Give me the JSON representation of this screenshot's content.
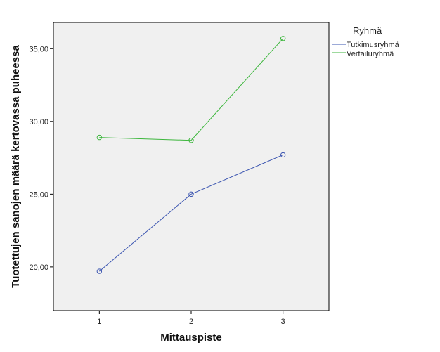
{
  "chart_data": {
    "type": "line",
    "xlabel": "Mittauspiste",
    "ylabel": "Tuotettujen sanojen määrä kertovassa puheessa",
    "x": [
      1,
      2,
      3
    ],
    "x_tick_labels": [
      "1",
      "2",
      "3"
    ],
    "xlim": [
      0.5,
      3.5
    ],
    "ylim": [
      17.0,
      36.8
    ],
    "y_ticks": [
      20,
      25,
      30,
      35
    ],
    "y_tick_labels": [
      "20,00",
      "25,00",
      "30,00",
      "35,00"
    ],
    "grid": false,
    "plot_background": "#f0f0f0",
    "legend": {
      "title": "Ryhmä",
      "position": "right"
    },
    "series": [
      {
        "name": "Tutkimusryhmä",
        "color": "#3a54b0",
        "values": [
          19.7,
          25.0,
          27.7
        ]
      },
      {
        "name": "Vertailuryhmä",
        "color": "#3cb63c",
        "values": [
          28.9,
          28.7,
          35.7
        ]
      }
    ]
  }
}
